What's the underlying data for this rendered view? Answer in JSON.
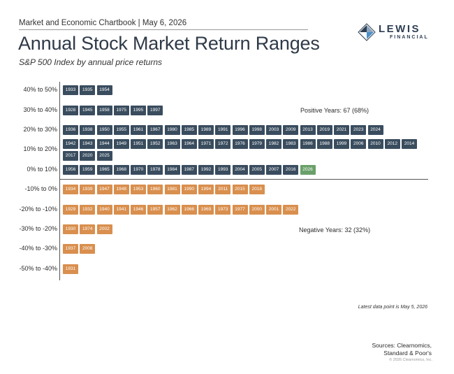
{
  "header": {
    "chartbook": "Market and Economic Chartbook | May 6, 2026",
    "title": "Annual Stock Market Return Ranges",
    "subtitle": "S&P 500 Index by annual price returns"
  },
  "logo": {
    "name": "LEWIS",
    "sub": "FINANCIAL"
  },
  "colors": {
    "positive": "#3a4d5f",
    "negative": "#d98f4e",
    "current_year": "#6aa06a"
  },
  "chart_data": {
    "type": "table",
    "rows": [
      {
        "range": "40% to 50%",
        "sign": "positive",
        "years": [
          "1933",
          "1935",
          "1954"
        ]
      },
      {
        "range": "30% to 40%",
        "sign": "positive",
        "years": [
          "1928",
          "1945",
          "1958",
          "1975",
          "1995",
          "1997"
        ]
      },
      {
        "range": "20% to 30%",
        "sign": "positive",
        "years": [
          "1936",
          "1938",
          "1950",
          "1955",
          "1961",
          "1967",
          "1980",
          "1985",
          "1989",
          "1991",
          "1996",
          "1998",
          "2003",
          "2009",
          "2013",
          "2019",
          "2021",
          "2023",
          "2024"
        ]
      },
      {
        "range": "10% to 20%",
        "sign": "positive",
        "years": [
          "1942",
          "1943",
          "1944",
          "1949",
          "1951",
          "1952",
          "1963",
          "1964",
          "1971",
          "1972",
          "1976",
          "1979",
          "1982",
          "1983",
          "1986",
          "1988",
          "1999",
          "2006",
          "2010",
          "2012",
          "2014",
          "2017",
          "2020",
          "2025"
        ]
      },
      {
        "range": "0% to 10%",
        "sign": "positive",
        "years": [
          "1956",
          "1959",
          "1965",
          "1968",
          "1970",
          "1978",
          "1984",
          "1987",
          "1992",
          "1993",
          "2004",
          "2005",
          "2007",
          "2016",
          "2026"
        ]
      },
      {
        "range": "-10% to 0%",
        "sign": "negative",
        "years": [
          "1934",
          "1939",
          "1947",
          "1948",
          "1953",
          "1960",
          "1981",
          "1990",
          "1994",
          "2011",
          "2015",
          "2018"
        ]
      },
      {
        "range": "-20% to -10%",
        "sign": "negative",
        "years": [
          "1929",
          "1932",
          "1940",
          "1941",
          "1946",
          "1957",
          "1962",
          "1966",
          "1969",
          "1973",
          "1977",
          "2000",
          "2001",
          "2022"
        ]
      },
      {
        "range": "-30% to -20%",
        "sign": "negative",
        "years": [
          "1930",
          "1974",
          "2002"
        ]
      },
      {
        "range": "-40% to -30%",
        "sign": "negative",
        "years": [
          "1937",
          "2008"
        ]
      },
      {
        "range": "-50% to -40%",
        "sign": "negative",
        "years": [
          "1931"
        ]
      }
    ],
    "current_year": "2026",
    "annotations": {
      "positive": "Positive Years: 67 (68%)",
      "negative": "Negative Years: 32 (32%)"
    }
  },
  "footer": {
    "latest": "Latest data point is May 5, 2026",
    "sources_line1": "Sources: Clearnomics,",
    "sources_line2": "Standard & Poor's",
    "copyright": "© 2026 Clearnomics, Inc."
  }
}
